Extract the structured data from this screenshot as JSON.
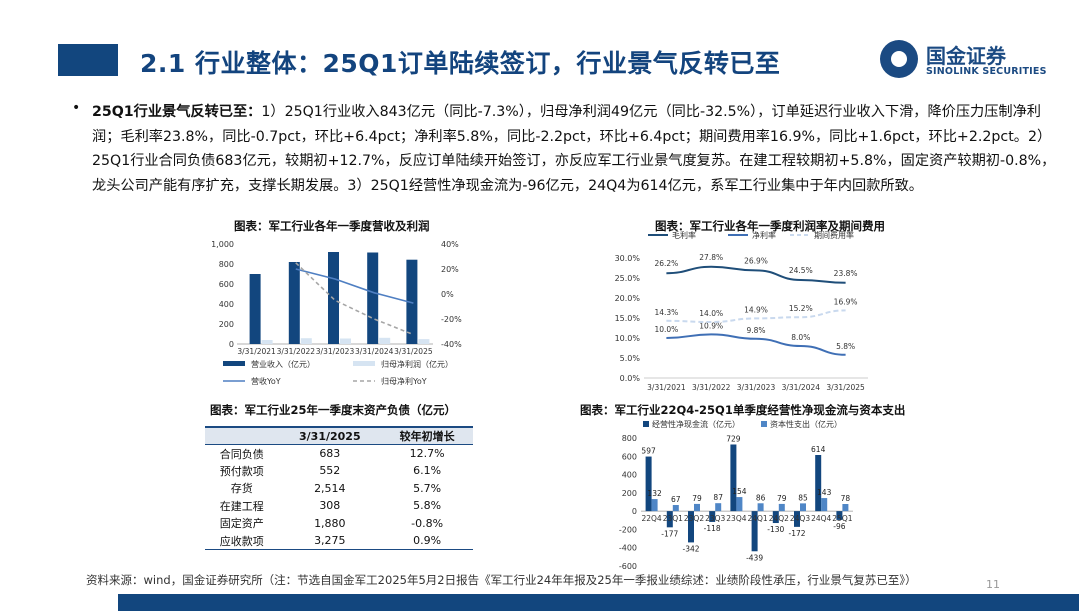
{
  "header": {
    "title": "2.1 行业整体：25Q1订单陆续签订，行业景气反转已至",
    "logo_cn": "国金证券",
    "logo_en": "SINOLINK SECURITIES"
  },
  "body": {
    "bullet": "•",
    "lead": "25Q1行业景气反转已至：",
    "text": "1）25Q1行业收入843亿元（同比-7.3%），归母净利润49亿元（同比-32.5%），订单延迟行业收入下滑，降价压力压制净利润；毛利率23.8%，同比-0.7pct，环比+6.4pct；净利率5.8%，同比-2.2pct，环比+6.4pct；期间费用率16.9%，同比+1.6pct，环比+2.2pct。2）25Q1行业合同负债683亿元，较期初+12.7%，反应订单陆续开始签订，亦反应军工行业景气度复苏。在建工程较期初+5.8%，固定资产较期初-0.8%，龙头公司产能有序扩充，支撑长期发展。3）25Q1经营性净现金流为-96亿元，24Q4为614亿元，系军工行业集中于年内回款所致。"
  },
  "chart_data": [
    {
      "type": "bar",
      "title": "图表：军工行业各年一季度营收及利润",
      "categories": [
        "3/31/2021",
        "3/31/2022",
        "3/31/2023",
        "3/31/2024",
        "3/31/2025"
      ],
      "left_ticks": [
        "1,000",
        "800",
        "600",
        "400",
        "200",
        "0"
      ],
      "right_ticks": [
        "40%",
        "20%",
        "0%",
        "-20%",
        "-40%"
      ],
      "ylim": [
        0,
        1000
      ],
      "y2lim": [
        -40,
        40
      ],
      "series": [
        {
          "name": "营业收入（亿元）",
          "kind": "bar",
          "color": "#12467e",
          "values": [
            700,
            820,
            920,
            915,
            843
          ]
        },
        {
          "name": "归母净利润（亿元）",
          "kind": "bar",
          "color": "#d6e4f2",
          "values": [
            40,
            58,
            55,
            62,
            49
          ]
        },
        {
          "name": "营收YoY",
          "kind": "line",
          "color": "#4f7fc2",
          "values": [
            null,
            20,
            12,
            1,
            -7.3
          ]
        },
        {
          "name": "归母净利YoY",
          "kind": "dashline",
          "color": "#a6a6a6",
          "values": [
            null,
            25,
            -5,
            -20,
            -32.5
          ]
        }
      ]
    },
    {
      "type": "line",
      "title": "图表：军工行业各年一季度利润率及期间费用",
      "categories": [
        "3/31/2021",
        "3/31/2022",
        "3/31/2023",
        "3/31/2024",
        "3/31/2025"
      ],
      "y_ticks": [
        "30.0%",
        "25.0%",
        "20.0%",
        "15.0%",
        "10.0%",
        "5.0%",
        "0.0%"
      ],
      "ylim": [
        0,
        30
      ],
      "series": [
        {
          "name": "毛利率",
          "color": "#1f4e79",
          "dash": false,
          "values": [
            26.2,
            27.8,
            26.9,
            24.5,
            23.8
          ],
          "labels": [
            "26.2%",
            "27.8%",
            "26.9%",
            "24.5%",
            "23.8%"
          ]
        },
        {
          "name": "净利率",
          "color": "#3f6fb5",
          "dash": false,
          "values": [
            10.0,
            10.9,
            9.8,
            8.0,
            5.8
          ],
          "labels": [
            "10.0%",
            "10.9%",
            "9.8%",
            "8.0%",
            "5.8%"
          ]
        },
        {
          "name": "期间费用率",
          "color": "#c9d9ee",
          "dash": true,
          "values": [
            14.3,
            14.0,
            14.9,
            15.2,
            16.9
          ],
          "labels": [
            "14.3%",
            "14.0%",
            "14.9%",
            "15.2%",
            "16.9%"
          ]
        }
      ]
    },
    {
      "type": "table",
      "title": "图表：军工行业25年一季度末资产负债（亿元）",
      "columns": [
        "",
        "3/31/2025",
        "较年初增长"
      ],
      "rows": [
        [
          "合同负债",
          "683",
          "12.7%"
        ],
        [
          "预付款项",
          "552",
          "6.1%"
        ],
        [
          "存货",
          "2,514",
          "5.7%"
        ],
        [
          "在建工程",
          "308",
          "5.8%"
        ],
        [
          "固定资产",
          "1,880",
          "-0.8%"
        ],
        [
          "应收款项",
          "3,275",
          "0.9%"
        ]
      ]
    },
    {
      "type": "bar",
      "title": "图表：军工行业22Q4-25Q1单季度经营性净现金流与资本支出",
      "categories": [
        "22Q4",
        "23Q1",
        "23Q2",
        "23Q3",
        "23Q4",
        "24Q1",
        "24Q2",
        "24Q3",
        "24Q4",
        "25Q1"
      ],
      "y_ticks": [
        "800",
        "600",
        "400",
        "200",
        "0",
        "-200",
        "-400",
        "-600"
      ],
      "ylim": [
        -600,
        800
      ],
      "series": [
        {
          "name": "经营性净现金流（亿元）",
          "color": "#12467e",
          "values": [
            597,
            -177,
            -342,
            -118,
            729,
            -439,
            -130,
            -172,
            614,
            -96
          ],
          "labels": [
            "597",
            "-177",
            "-342",
            "-118",
            "729",
            "-439",
            "-130",
            "-172",
            "614",
            "-96"
          ]
        },
        {
          "name": "资本性支出（亿元）",
          "color": "#4f86c6",
          "values": [
            132,
            67,
            79,
            87,
            154,
            86,
            79,
            85,
            143,
            78
          ],
          "labels": [
            "132",
            "67",
            "79",
            "87",
            "154",
            "86",
            "79",
            "85",
            "143",
            "78"
          ]
        }
      ]
    }
  ],
  "footer": {
    "source": "资料来源：wind，国金证券研究所（注：节选自国金军工2025年5月2日报告《军工行业24年年报及25年一季报业绩综述：业绩阶段性承压，行业景气复苏已至》）",
    "page": "11"
  }
}
